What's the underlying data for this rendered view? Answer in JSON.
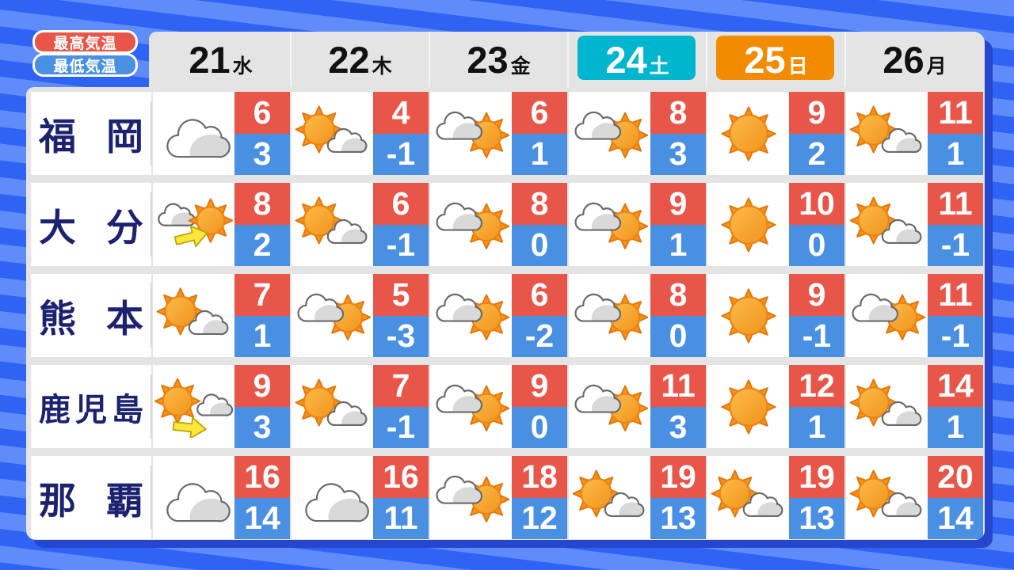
{
  "legend": {
    "high_label": "最高気温",
    "low_label": "最低気温"
  },
  "colors": {
    "temp_high_bg": "#e8564a",
    "temp_low_bg": "#4a90e2",
    "saturday_bg": "#00b6ce",
    "sunday_bg": "#f28b00",
    "city_text": "#1c2270",
    "card_bg": "#e4e4e4",
    "shadow": "#2646cd",
    "bg_stripe_light": "#5f8cf8",
    "bg_stripe_dark": "#2f63f3",
    "sun_color": "#f6941c",
    "cloud_shade": "#d9d9d9",
    "arrow_color": "#ffe63a"
  },
  "icon_legend": {
    "cloudy": "曇り",
    "sunny": "晴れ",
    "sun-and-cloud": "晴れ時々曇り",
    "cloud-and-sun": "曇り時々晴れ",
    "cloud-then-sun": "曇りのち晴れ",
    "sun-then-cloud": "晴れのち曇り"
  },
  "chart_data": {
    "type": "table",
    "columns": [
      "21水",
      "22木",
      "23金",
      "24土",
      "25日",
      "26月"
    ],
    "days": [
      {
        "date": "21",
        "weekday": "水",
        "highlight": null
      },
      {
        "date": "22",
        "weekday": "木",
        "highlight": null
      },
      {
        "date": "23",
        "weekday": "金",
        "highlight": null
      },
      {
        "date": "24",
        "weekday": "土",
        "highlight": "saturday"
      },
      {
        "date": "25",
        "weekday": "日",
        "highlight": "sunday"
      },
      {
        "date": "26",
        "weekday": "月",
        "highlight": null
      }
    ],
    "rows": [
      {
        "city": "福岡",
        "forecast": [
          {
            "icon": "cloudy",
            "high": 6,
            "low": 3
          },
          {
            "icon": "sun-and-cloud",
            "high": 4,
            "low": -1
          },
          {
            "icon": "cloud-and-sun",
            "high": 6,
            "low": 1
          },
          {
            "icon": "cloud-and-sun",
            "high": 8,
            "low": 3
          },
          {
            "icon": "sunny",
            "high": 9,
            "low": 2
          },
          {
            "icon": "sun-and-cloud",
            "high": 11,
            "low": 1
          }
        ]
      },
      {
        "city": "大分",
        "forecast": [
          {
            "icon": "cloud-then-sun",
            "high": 8,
            "low": 2
          },
          {
            "icon": "sun-and-cloud",
            "high": 6,
            "low": -1
          },
          {
            "icon": "cloud-and-sun",
            "high": 8,
            "low": 0
          },
          {
            "icon": "cloud-and-sun",
            "high": 9,
            "low": 1
          },
          {
            "icon": "sunny",
            "high": 10,
            "low": 0
          },
          {
            "icon": "sun-and-cloud",
            "high": 11,
            "low": -1
          }
        ]
      },
      {
        "city": "熊本",
        "forecast": [
          {
            "icon": "sun-and-cloud",
            "high": 7,
            "low": 1
          },
          {
            "icon": "cloud-and-sun",
            "high": 5,
            "low": -3
          },
          {
            "icon": "cloud-and-sun",
            "high": 6,
            "low": -2
          },
          {
            "icon": "cloud-and-sun",
            "high": 8,
            "low": 0
          },
          {
            "icon": "sunny",
            "high": 9,
            "low": -1
          },
          {
            "icon": "cloud-and-sun",
            "high": 11,
            "low": -1
          }
        ]
      },
      {
        "city": "鹿児島",
        "forecast": [
          {
            "icon": "sun-then-cloud",
            "high": 9,
            "low": 3
          },
          {
            "icon": "sun-and-cloud",
            "high": 7,
            "low": -1
          },
          {
            "icon": "cloud-and-sun",
            "high": 9,
            "low": 0
          },
          {
            "icon": "cloud-and-sun",
            "high": 11,
            "low": 3
          },
          {
            "icon": "sunny",
            "high": 12,
            "low": 1
          },
          {
            "icon": "sun-and-cloud",
            "high": 14,
            "low": 1
          }
        ]
      },
      {
        "city": "那覇",
        "forecast": [
          {
            "icon": "cloudy",
            "high": 16,
            "low": 14
          },
          {
            "icon": "cloudy",
            "high": 16,
            "low": 11
          },
          {
            "icon": "cloud-and-sun",
            "high": 18,
            "low": 12
          },
          {
            "icon": "sun-and-cloud",
            "high": 19,
            "low": 13
          },
          {
            "icon": "sun-and-cloud",
            "high": 19,
            "low": 13
          },
          {
            "icon": "sun-and-cloud",
            "high": 20,
            "low": 14
          }
        ]
      }
    ]
  }
}
